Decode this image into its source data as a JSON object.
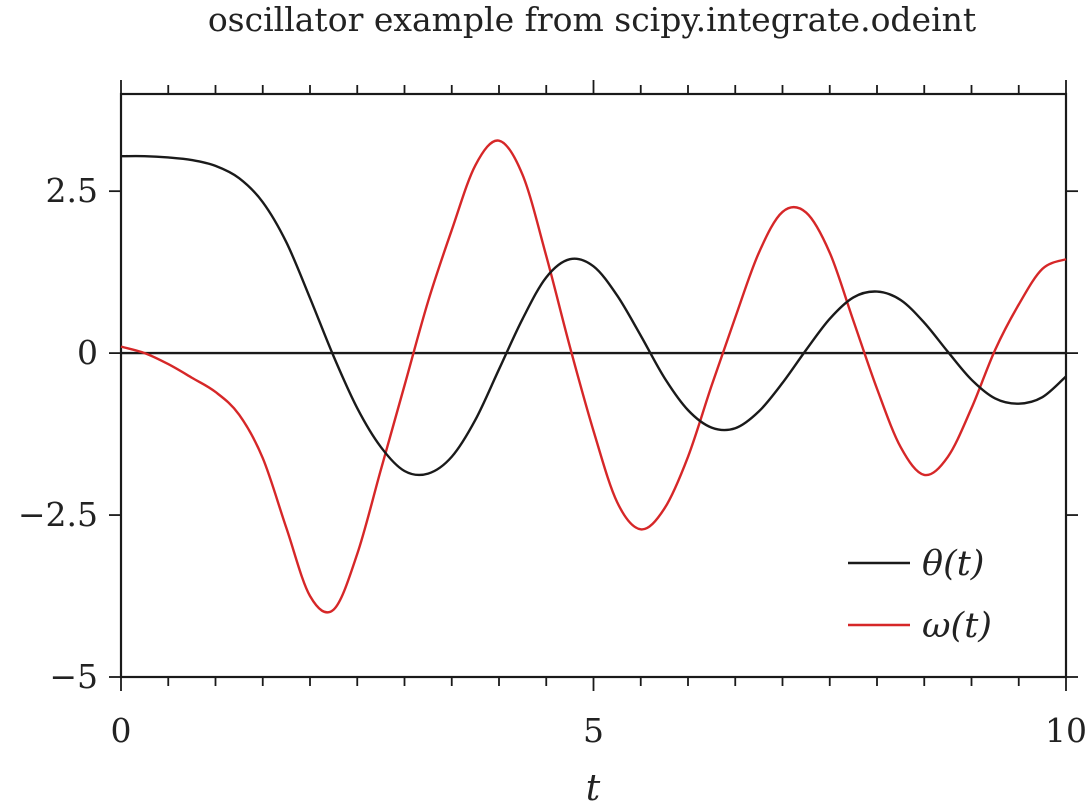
{
  "chart_data": {
    "type": "line",
    "title": "oscillator example from scipy.integrate.odeint",
    "xlabel": "t",
    "ylabel": "",
    "xlim": [
      0,
      10
    ],
    "ylim": [
      -5,
      4
    ],
    "xticks": [
      0,
      5,
      10
    ],
    "xtick_labels": [
      "0",
      "5",
      "10"
    ],
    "yticks": [
      -5,
      -2.5,
      0,
      2.5
    ],
    "ytick_labels": [
      "−5",
      "−2.5",
      "0",
      "2.5"
    ],
    "zero_line": true,
    "grid": false,
    "legend_position": "bottom-right",
    "series": [
      {
        "name": "θ(t)",
        "color": "#1a1a1a",
        "x": [
          0,
          0.25,
          0.5,
          0.75,
          1.0,
          1.25,
          1.5,
          1.75,
          2.0,
          2.25,
          2.5,
          2.75,
          3.0,
          3.25,
          3.5,
          3.75,
          4.0,
          4.25,
          4.5,
          4.75,
          5.0,
          5.25,
          5.5,
          5.75,
          6.0,
          6.25,
          6.5,
          6.75,
          7.0,
          7.25,
          7.5,
          7.75,
          8.0,
          8.25,
          8.5,
          8.75,
          9.0,
          9.25,
          9.5,
          9.75,
          10.0
        ],
        "y": [
          3.04,
          3.04,
          3.02,
          2.98,
          2.89,
          2.7,
          2.33,
          1.71,
          0.85,
          -0.05,
          -0.85,
          -1.45,
          -1.82,
          -1.86,
          -1.6,
          -1.03,
          -0.25,
          0.53,
          1.17,
          1.45,
          1.34,
          0.89,
          0.27,
          -0.38,
          -0.88,
          -1.15,
          -1.16,
          -0.9,
          -0.46,
          0.05,
          0.53,
          0.86,
          0.95,
          0.82,
          0.47,
          0.02,
          -0.41,
          -0.7,
          -0.78,
          -0.68,
          -0.36
        ]
      },
      {
        "name": "ω(t)",
        "color": "#d62728",
        "x": [
          0,
          0.25,
          0.5,
          0.75,
          1.0,
          1.25,
          1.5,
          1.75,
          2.0,
          2.25,
          2.5,
          2.75,
          3.0,
          3.25,
          3.5,
          3.75,
          4.0,
          4.25,
          4.5,
          4.75,
          5.0,
          5.25,
          5.5,
          5.75,
          6.0,
          6.25,
          6.5,
          6.75,
          7.0,
          7.25,
          7.5,
          7.75,
          8.0,
          8.25,
          8.5,
          8.75,
          9.0,
          9.25,
          9.5,
          9.75,
          10.0
        ],
        "y": [
          0.1,
          0.0,
          -0.17,
          -0.38,
          -0.6,
          -0.95,
          -1.62,
          -2.7,
          -3.75,
          -3.96,
          -3.1,
          -1.8,
          -0.5,
          0.8,
          1.9,
          2.9,
          3.28,
          2.75,
          1.5,
          0.1,
          -1.2,
          -2.3,
          -2.72,
          -2.4,
          -1.6,
          -0.5,
          0.55,
          1.55,
          2.18,
          2.17,
          1.55,
          0.5,
          -0.55,
          -1.45,
          -1.88,
          -1.6,
          -0.85,
          0.05,
          0.75,
          1.3,
          1.45
        ]
      }
    ]
  }
}
